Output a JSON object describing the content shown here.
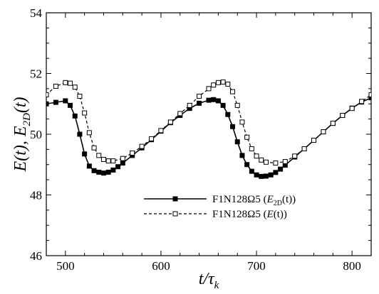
{
  "chart_data": {
    "type": "line",
    "xlim": [
      480,
      820
    ],
    "ylim": [
      46,
      54
    ],
    "x_ticks": [
      500,
      600,
      700,
      800
    ],
    "y_ticks": [
      46,
      48,
      50,
      52,
      54
    ],
    "xlabel": {
      "main": "t/τ",
      "sub": "k"
    },
    "ylabel": {
      "p1": "E(t), E",
      "sub": "2D",
      "p2": "(t)"
    },
    "grid": false,
    "legend_position": "lower-right",
    "series": [
      {
        "name_text": "F1N128Ω5 (",
        "name_var": "E",
        "name_sub": "2D",
        "name_tail": "(t))",
        "line": "solid",
        "marker": "filled-square",
        "color": "#000000",
        "x": [
          480,
          490,
          500,
          505,
          510,
          515,
          520,
          525,
          530,
          535,
          540,
          545,
          550,
          555,
          560,
          570,
          580,
          590,
          600,
          610,
          620,
          630,
          640,
          650,
          655,
          660,
          665,
          670,
          675,
          680,
          685,
          690,
          695,
          700,
          705,
          710,
          715,
          720,
          725,
          730,
          740,
          750,
          760,
          770,
          780,
          790,
          800,
          810,
          820
        ],
        "y": [
          51.0,
          51.05,
          51.1,
          50.95,
          50.6,
          50.0,
          49.35,
          48.95,
          48.8,
          48.75,
          48.72,
          48.75,
          48.82,
          48.93,
          49.05,
          49.3,
          49.55,
          49.82,
          50.1,
          50.38,
          50.62,
          50.85,
          51.02,
          51.12,
          51.14,
          51.1,
          50.95,
          50.65,
          50.25,
          49.75,
          49.3,
          49.0,
          48.78,
          48.66,
          48.61,
          48.62,
          48.66,
          48.74,
          48.85,
          48.98,
          49.25,
          49.52,
          49.8,
          50.08,
          50.36,
          50.62,
          50.86,
          51.06,
          51.2
        ]
      },
      {
        "name_text": "F1N128Ω5 (",
        "name_var": "E",
        "name_sub": "",
        "name_tail": "(t))",
        "line": "dashed",
        "marker": "open-square",
        "color": "#000000",
        "x": [
          480,
          490,
          500,
          505,
          510,
          515,
          520,
          525,
          530,
          535,
          540,
          545,
          550,
          560,
          570,
          580,
          590,
          600,
          610,
          620,
          630,
          640,
          650,
          655,
          660,
          665,
          670,
          675,
          680,
          685,
          690,
          695,
          700,
          705,
          710,
          720,
          730,
          740,
          750,
          760,
          770,
          780,
          790,
          800,
          810,
          820
        ],
        "y": [
          51.3,
          51.58,
          51.7,
          51.68,
          51.55,
          51.25,
          50.7,
          50.05,
          49.55,
          49.3,
          49.17,
          49.12,
          49.12,
          49.2,
          49.38,
          49.6,
          49.85,
          50.12,
          50.4,
          50.68,
          50.95,
          51.25,
          51.5,
          51.62,
          51.7,
          51.72,
          51.65,
          51.4,
          50.95,
          50.4,
          49.9,
          49.52,
          49.28,
          49.15,
          49.08,
          49.05,
          49.1,
          49.28,
          49.52,
          49.8,
          50.08,
          50.36,
          50.62,
          50.85,
          51.08,
          51.3
        ]
      }
    ]
  }
}
